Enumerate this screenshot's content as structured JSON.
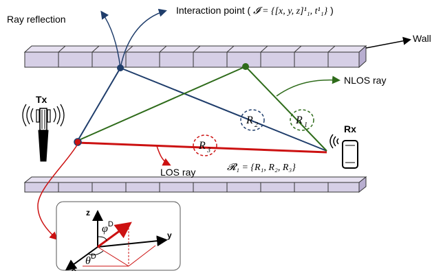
{
  "labels": {
    "ray_reflection": "Ray reflection",
    "interaction_point_prefix": "Interaction point ( ",
    "interaction_point_math": "𝓘 = {[x, y, z]¹₁, t¹₁}",
    "interaction_point_suffix": " )",
    "wall": "Wall",
    "nlos_ray": "NLOS ray",
    "los_ray": "LOS ray",
    "tx": "Tx",
    "rx": "Rx",
    "ray_set": "𝓡₁ = {R₁, R₂, R₃}"
  },
  "rays": [
    {
      "id": "R1",
      "name": "R",
      "sub": "1",
      "color": "#2e6b1a"
    },
    {
      "id": "R2",
      "name": "R",
      "sub": "2",
      "color": "#1f3d6b"
    },
    {
      "id": "R3",
      "name": "R",
      "sub": "3",
      "color": "#cc1111"
    }
  ],
  "axes": {
    "z": "z",
    "y": "y",
    "x": "x",
    "phi": "φ",
    "phi_sup": "D",
    "theta": "θ",
    "theta_sup": "D"
  },
  "colors": {
    "wall_fill": "#d6cfe6",
    "wall_stroke": "#333333",
    "nlos_green": "#2e6b1a",
    "nlos_blue": "#1f3d6b",
    "los_red": "#cc1111"
  }
}
